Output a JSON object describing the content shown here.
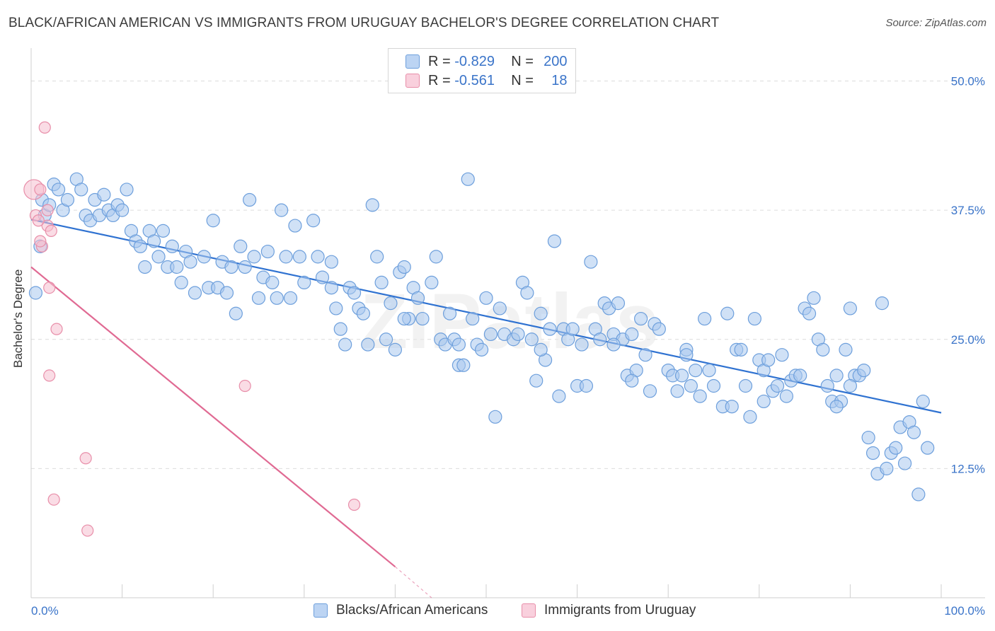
{
  "header": {
    "title": "BLACK/AFRICAN AMERICAN VS IMMIGRANTS FROM URUGUAY BACHELOR'S DEGREE CORRELATION CHART",
    "source": "Source: ZipAtlas.com"
  },
  "legend_top": {
    "row1": {
      "r_label": "R =",
      "r_value": "-0.829",
      "n_label": "N =",
      "n_value": "200"
    },
    "row2": {
      "r_label": "R =",
      "r_value": "-0.561",
      "n_label": "N =",
      "n_value": "18"
    }
  },
  "watermark": "ZIPatlas",
  "colors": {
    "blue_fill": "#a9c8ee",
    "blue_stroke": "#6d9fdc",
    "blue_line": "#2f72d1",
    "pink_fill": "#f6bfd0",
    "pink_stroke": "#e88ea9",
    "pink_line": "#e06a93",
    "axis_text": "#3a74c9"
  },
  "chart_data": {
    "type": "scatter",
    "title": "BLACK/AFRICAN AMERICAN VS IMMIGRANTS FROM URUGUAY BACHELOR'S DEGREE CORRELATION CHART",
    "xlabel": "",
    "ylabel": "Bachelor's Degree",
    "xlim": [
      0,
      100
    ],
    "ylim": [
      0,
      52.5
    ],
    "x_tick_labels": [
      "0.0%",
      "100.0%"
    ],
    "y_ticks": [
      12.5,
      25.0,
      37.5,
      50.0
    ],
    "y_tick_labels": [
      "12.5%",
      "25.0%",
      "37.5%",
      "50.0%"
    ],
    "grid": "horizontal dashed",
    "legend_position": "bottom",
    "series": [
      {
        "name": "Blacks/African Americans",
        "color": "#6d9fdc",
        "trend": {
          "x": [
            0,
            100
          ],
          "y": [
            36.6,
            17.9
          ]
        },
        "points": [
          [
            0.5,
            29.5
          ],
          [
            1.0,
            34.0
          ],
          [
            1.2,
            38.5
          ],
          [
            1.5,
            37.0
          ],
          [
            2.0,
            38.0
          ],
          [
            2.5,
            40.0
          ],
          [
            3.0,
            39.5
          ],
          [
            3.5,
            37.5
          ],
          [
            4.0,
            38.5
          ],
          [
            5.0,
            40.5
          ],
          [
            5.5,
            39.5
          ],
          [
            6.0,
            37.0
          ],
          [
            6.5,
            36.5
          ],
          [
            7.0,
            38.5
          ],
          [
            7.5,
            37.0
          ],
          [
            8.0,
            39.0
          ],
          [
            8.5,
            37.5
          ],
          [
            9.0,
            37.0
          ],
          [
            9.5,
            38.0
          ],
          [
            10.0,
            37.5
          ],
          [
            10.5,
            39.5
          ],
          [
            11.0,
            35.5
          ],
          [
            11.5,
            34.5
          ],
          [
            12.0,
            34.0
          ],
          [
            12.5,
            32.0
          ],
          [
            13.0,
            35.5
          ],
          [
            13.5,
            34.5
          ],
          [
            14.0,
            33.0
          ],
          [
            14.5,
            35.5
          ],
          [
            15.0,
            32.0
          ],
          [
            15.5,
            34.0
          ],
          [
            16.0,
            32.0
          ],
          [
            16.5,
            30.5
          ],
          [
            17.0,
            33.5
          ],
          [
            17.5,
            32.5
          ],
          [
            18.0,
            29.5
          ],
          [
            19.0,
            33.0
          ],
          [
            19.5,
            30.0
          ],
          [
            20.0,
            36.5
          ],
          [
            20.5,
            30.0
          ],
          [
            21.0,
            32.5
          ],
          [
            21.5,
            29.5
          ],
          [
            22.0,
            32.0
          ],
          [
            22.5,
            27.5
          ],
          [
            23.0,
            34.0
          ],
          [
            23.5,
            32.0
          ],
          [
            24.0,
            38.5
          ],
          [
            24.5,
            33.0
          ],
          [
            25.0,
            29.0
          ],
          [
            25.5,
            31.0
          ],
          [
            26.0,
            33.5
          ],
          [
            26.5,
            30.5
          ],
          [
            27.0,
            29.0
          ],
          [
            27.5,
            37.5
          ],
          [
            28.0,
            33.0
          ],
          [
            28.5,
            29.0
          ],
          [
            29.0,
            36.0
          ],
          [
            29.5,
            33.0
          ],
          [
            30.0,
            30.5
          ],
          [
            31.0,
            36.5
          ],
          [
            31.5,
            33.0
          ],
          [
            32.0,
            31.0
          ],
          [
            33.0,
            30.0
          ],
          [
            33.5,
            28.0
          ],
          [
            34.0,
            26.0
          ],
          [
            34.5,
            24.5
          ],
          [
            35.0,
            30.0
          ],
          [
            35.5,
            29.5
          ],
          [
            36.0,
            28.0
          ],
          [
            36.5,
            27.5
          ],
          [
            37.0,
            24.5
          ],
          [
            37.5,
            38.0
          ],
          [
            38.0,
            33.0
          ],
          [
            38.5,
            30.5
          ],
          [
            39.0,
            25.0
          ],
          [
            39.5,
            28.5
          ],
          [
            40.0,
            24.0
          ],
          [
            40.5,
            31.5
          ],
          [
            41.0,
            32.0
          ],
          [
            41.5,
            27.0
          ],
          [
            42.0,
            30.0
          ],
          [
            42.5,
            29.0
          ],
          [
            43.0,
            27.0
          ],
          [
            44.0,
            30.5
          ],
          [
            44.5,
            33.0
          ],
          [
            45.0,
            25.0
          ],
          [
            45.5,
            24.5
          ],
          [
            46.0,
            27.5
          ],
          [
            46.5,
            25.0
          ],
          [
            47.0,
            22.5
          ],
          [
            47.5,
            22.5
          ],
          [
            48.0,
            40.5
          ],
          [
            48.5,
            27.0
          ],
          [
            49.0,
            24.5
          ],
          [
            49.5,
            24.0
          ],
          [
            50.0,
            29.0
          ],
          [
            50.5,
            25.5
          ],
          [
            51.0,
            17.5
          ],
          [
            51.5,
            28.0
          ],
          [
            52.0,
            25.5
          ],
          [
            53.0,
            25.0
          ],
          [
            53.5,
            25.5
          ],
          [
            54.0,
            30.5
          ],
          [
            54.5,
            29.5
          ],
          [
            55.0,
            25.0
          ],
          [
            55.5,
            21.0
          ],
          [
            56.0,
            27.5
          ],
          [
            56.5,
            23.0
          ],
          [
            57.0,
            26.0
          ],
          [
            57.5,
            34.5
          ],
          [
            58.0,
            19.5
          ],
          [
            58.5,
            26.0
          ],
          [
            59.0,
            25.0
          ],
          [
            59.5,
            26.0
          ],
          [
            60.0,
            20.5
          ],
          [
            60.5,
            24.5
          ],
          [
            61.0,
            20.5
          ],
          [
            61.5,
            32.5
          ],
          [
            62.0,
            26.0
          ],
          [
            62.5,
            25.0
          ],
          [
            63.0,
            28.5
          ],
          [
            63.5,
            28.0
          ],
          [
            64.0,
            25.5
          ],
          [
            64.5,
            28.5
          ],
          [
            65.0,
            25.0
          ],
          [
            65.5,
            21.5
          ],
          [
            66.0,
            25.5
          ],
          [
            66.5,
            22.0
          ],
          [
            67.0,
            27.0
          ],
          [
            67.5,
            23.5
          ],
          [
            68.0,
            20.0
          ],
          [
            68.5,
            26.5
          ],
          [
            69.0,
            26.0
          ],
          [
            70.0,
            22.0
          ],
          [
            70.5,
            21.5
          ],
          [
            71.0,
            20.0
          ],
          [
            71.5,
            21.5
          ],
          [
            72.0,
            24.0
          ],
          [
            72.5,
            20.5
          ],
          [
            73.0,
            22.0
          ],
          [
            73.5,
            19.5
          ],
          [
            74.0,
            27.0
          ],
          [
            74.5,
            22.0
          ],
          [
            75.0,
            20.5
          ],
          [
            76.0,
            18.5
          ],
          [
            76.5,
            27.5
          ],
          [
            77.0,
            18.5
          ],
          [
            77.5,
            24.0
          ],
          [
            78.0,
            24.0
          ],
          [
            78.5,
            20.5
          ],
          [
            79.0,
            17.5
          ],
          [
            79.5,
            27.0
          ],
          [
            80.0,
            23.0
          ],
          [
            80.5,
            22.0
          ],
          [
            81.0,
            23.0
          ],
          [
            81.5,
            20.0
          ],
          [
            82.0,
            20.5
          ],
          [
            82.5,
            23.5
          ],
          [
            83.0,
            19.5
          ],
          [
            83.5,
            21.0
          ],
          [
            84.0,
            21.5
          ],
          [
            84.5,
            21.5
          ],
          [
            85.0,
            28.0
          ],
          [
            85.5,
            27.5
          ],
          [
            86.0,
            29.0
          ],
          [
            86.5,
            25.0
          ],
          [
            87.0,
            24.0
          ],
          [
            87.5,
            20.5
          ],
          [
            88.0,
            19.0
          ],
          [
            88.5,
            21.5
          ],
          [
            89.0,
            19.0
          ],
          [
            89.5,
            24.0
          ],
          [
            90.0,
            28.0
          ],
          [
            90.5,
            21.5
          ],
          [
            91.0,
            21.5
          ],
          [
            91.5,
            22.0
          ],
          [
            92.0,
            15.5
          ],
          [
            92.5,
            14.0
          ],
          [
            93.0,
            12.0
          ],
          [
            93.5,
            28.5
          ],
          [
            94.0,
            12.5
          ],
          [
            94.5,
            14.0
          ],
          [
            95.0,
            14.5
          ],
          [
            95.5,
            16.5
          ],
          [
            96.0,
            13.0
          ],
          [
            96.5,
            17.0
          ],
          [
            97.0,
            16.0
          ],
          [
            97.5,
            10.0
          ],
          [
            98.0,
            19.0
          ],
          [
            98.5,
            14.5
          ],
          [
            47.0,
            24.5
          ],
          [
            56.0,
            24.0
          ],
          [
            64.0,
            24.5
          ],
          [
            72.0,
            23.5
          ],
          [
            80.5,
            19.0
          ],
          [
            88.5,
            18.5
          ],
          [
            33.0,
            32.5
          ],
          [
            41.0,
            27.0
          ],
          [
            66.0,
            21.0
          ],
          [
            90.0,
            20.5
          ]
        ]
      },
      {
        "name": "Immigrants from Uruguay",
        "color": "#e88ea9",
        "trend": {
          "x": [
            0,
            40
          ],
          "y": [
            32.0,
            3.0
          ],
          "dashed_to": [
            44,
            0
          ]
        },
        "points": [
          [
            0.3,
            39.5
          ],
          [
            0.5,
            37.0
          ],
          [
            1.0,
            39.5
          ],
          [
            1.2,
            34.0
          ],
          [
            1.5,
            45.5
          ],
          [
            1.8,
            37.5
          ],
          [
            1.8,
            36.0
          ],
          [
            2.0,
            30.0
          ],
          [
            2.0,
            21.5
          ],
          [
            2.2,
            35.5
          ],
          [
            2.5,
            9.5
          ],
          [
            2.8,
            26.0
          ],
          [
            6.0,
            13.5
          ],
          [
            6.2,
            6.5
          ],
          [
            23.5,
            20.5
          ],
          [
            35.5,
            9.0
          ],
          [
            0.8,
            36.5
          ],
          [
            1.0,
            34.5
          ]
        ]
      }
    ]
  },
  "legend_bottom": {
    "item1": "Blacks/African Americans",
    "item2": "Immigrants from Uruguay"
  }
}
